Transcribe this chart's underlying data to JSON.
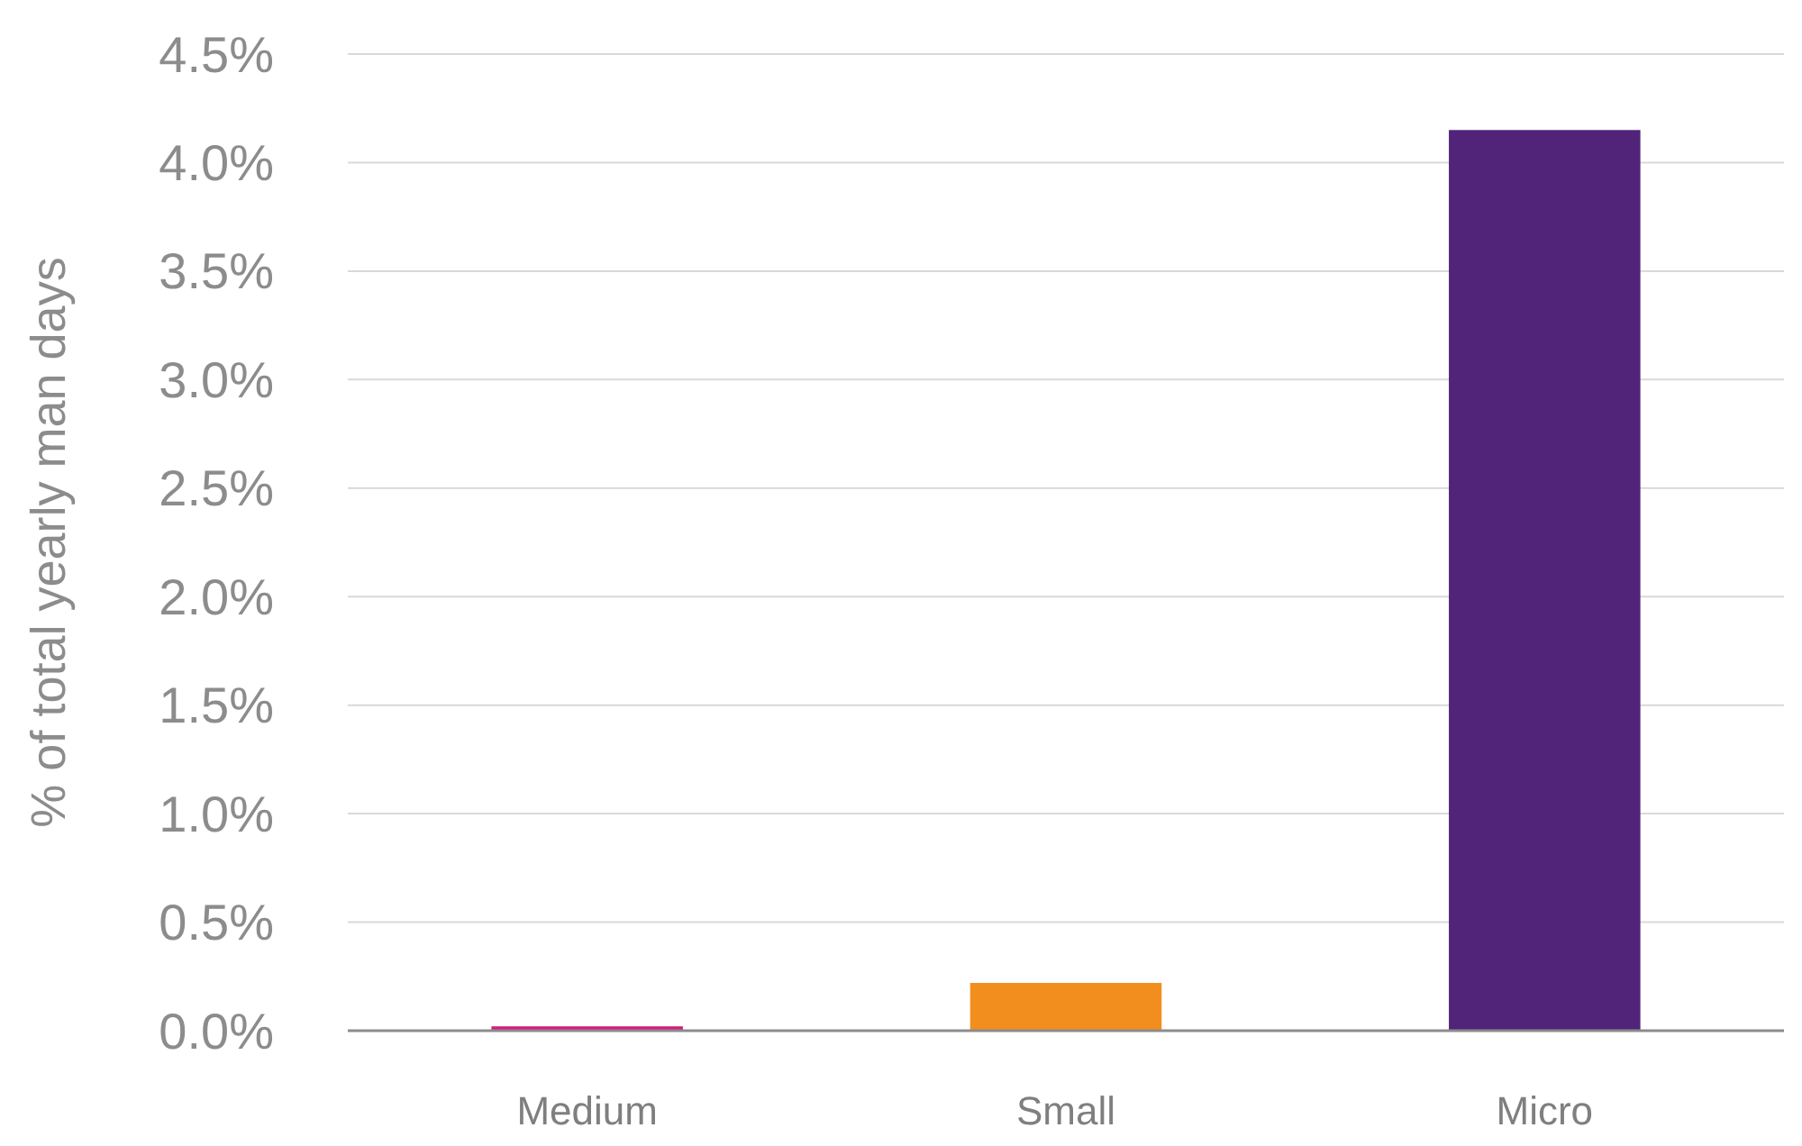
{
  "chart_data": {
    "type": "bar",
    "ylabel": "% of total yearly man days",
    "categories": [
      "Medium",
      "Small",
      "Micro"
    ],
    "values": [
      0.02,
      0.22,
      4.15
    ],
    "colors": [
      "#d01f7e",
      "#f28e1e",
      "#51247a"
    ],
    "ylim": [
      0,
      4.5
    ],
    "yticks": [
      {
        "value": 0,
        "label": "0.0%"
      },
      {
        "value": 0.5,
        "label": "0.5%"
      },
      {
        "value": 1,
        "label": "1.0%"
      },
      {
        "value": 1.5,
        "label": "1.5%"
      },
      {
        "value": 2,
        "label": "2.0%"
      },
      {
        "value": 2.5,
        "label": "2.5%"
      },
      {
        "value": 3,
        "label": "3.0%"
      },
      {
        "value": 3.5,
        "label": "3.5%"
      },
      {
        "value": 4,
        "label": "4.0%"
      },
      {
        "value": 4.5,
        "label": "4.5%"
      }
    ],
    "grid": "y"
  }
}
